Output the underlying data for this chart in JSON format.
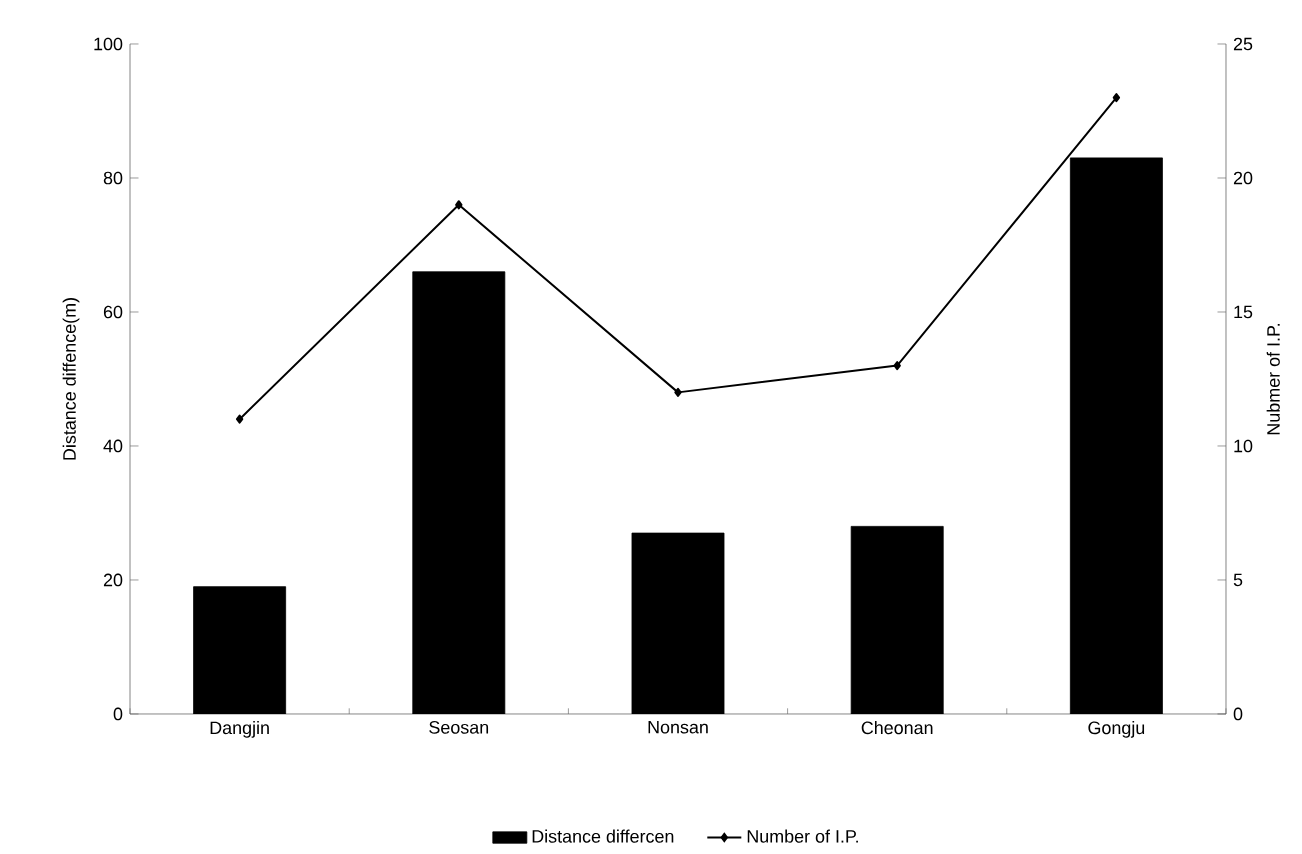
{
  "chart_data": {
    "type": "bar",
    "categories": [
      "Dangjin",
      "Seosan",
      "Nonsan",
      "Cheonan",
      "Gongju"
    ],
    "ylabel": "Distance diffence(m)",
    "y2label": "Nubmer of I.P.",
    "ylim": [
      0,
      100
    ],
    "yticks": [
      0,
      20,
      40,
      60,
      80,
      100
    ],
    "y2lim": [
      0,
      25
    ],
    "y2ticks": [
      0,
      5,
      10,
      15,
      20,
      25
    ],
    "legend": "bottom",
    "grid": false,
    "series": [
      {
        "name": "Distance differcen",
        "color": "#000000",
        "values": [
          19,
          66,
          27,
          28,
          83
        ]
      },
      {
        "name": "Number of I.P.",
        "type": "line",
        "axis": "y2",
        "color": "#000000",
        "marker": "diamond",
        "line_style": "solid",
        "values": [
          11,
          19,
          12,
          13,
          23
        ]
      }
    ]
  }
}
